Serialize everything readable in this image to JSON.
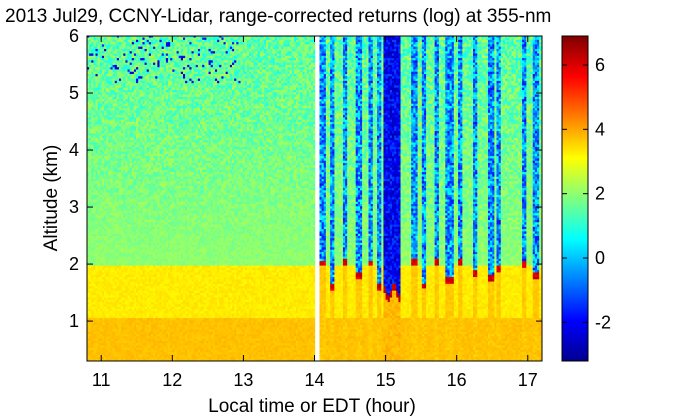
{
  "chart_data": {
    "type": "heatmap",
    "title": "2013 Jul29, CCNY-Lidar, range-corrected returns (log) at 355-nm",
    "xlabel": "Local time or EDT (hour)",
    "ylabel": "Altitude (km)",
    "xlim": [
      10.8,
      17.2
    ],
    "ylim": [
      0.3,
      6.0
    ],
    "xticks": [
      11,
      12,
      13,
      14,
      15,
      16,
      17
    ],
    "yticks": [
      1,
      2,
      3,
      4,
      5,
      6
    ],
    "colorbar": {
      "colormap": "jet",
      "range": [
        -3.2,
        6.9
      ],
      "ticks": [
        -2,
        0,
        2,
        4,
        6
      ],
      "tick_labels": [
        "-2",
        "0",
        "2",
        "4",
        "6"
      ]
    },
    "data_gap_hours": [
      14.0,
      14.06
    ],
    "features": {
      "boundary_layer_top_km": 2.0,
      "near_surface_value": 3.5,
      "free_troposphere_value": 2.0,
      "cloud_base_value": 6.0,
      "cloud_base_range_km": [
        1.4,
        2.1
      ],
      "above_cloud_value": -2.5,
      "main_cloud_span_hours": [
        14.98,
        15.22
      ],
      "cloud_columns_hours": [
        14.12,
        14.25,
        14.42,
        14.62,
        14.78,
        14.9,
        15.4,
        15.55,
        15.72,
        15.9,
        16.05,
        16.25,
        16.48,
        16.6,
        16.95,
        17.12
      ]
    }
  }
}
